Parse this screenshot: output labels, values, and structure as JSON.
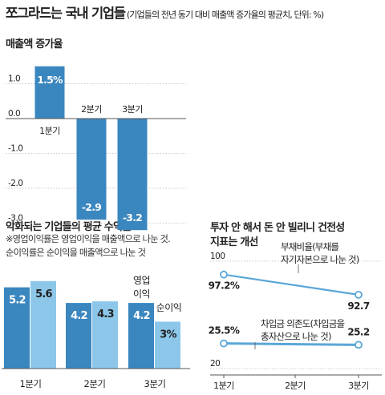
{
  "title": "쪼그라드는 국내 기업들",
  "subtitle": "(기업들의 전년 동기 대비 매출액 증가율의 평균치, 단위: %)",
  "colors": {
    "dark_bar": "#3a86bf",
    "light_bar": "#8cc7ea",
    "line": "#5aa6d8",
    "grid": "#bbbbbb",
    "zero_line": "#555555"
  },
  "chart_data": [
    {
      "type": "bar",
      "title": "매출액 증가율",
      "categories": [
        "1분기",
        "2분기",
        "3분기"
      ],
      "values": [
        1.5,
        -2.9,
        -3.2
      ],
      "value_labels": [
        "1.5%",
        "-2.9",
        "-3.2"
      ],
      "yticks": [
        "1.0",
        "0.0",
        "-1.0",
        "-2.0",
        "-3.0"
      ],
      "ylim": [
        -3.4,
        1.8
      ],
      "grid": true
    },
    {
      "type": "bar",
      "title": "악화되는 기업들의 평균 수익률",
      "note_lines": [
        "※영업이익률은 영업이익을 매출액으로 나눈 것.",
        "순이익률은 순이익을 매출액으로 나눈 것"
      ],
      "categories": [
        "1분기",
        "2분기",
        "3분기"
      ],
      "series": [
        {
          "name": "영업\n이익",
          "values": [
            5.2,
            4.2,
            4.2
          ],
          "labels": [
            "5.2",
            "4.2",
            "4.2"
          ]
        },
        {
          "name": "순이익",
          "values": [
            5.6,
            4.3,
            3.0
          ],
          "labels": [
            "5.6",
            "4.3",
            "3%"
          ]
        }
      ],
      "ylim": [
        0,
        5.6
      ]
    },
    {
      "type": "line",
      "title_lines": [
        "투자 안 해서 돈 안 빌리니 건전성",
        "지표는 개선"
      ],
      "categories": [
        "1분기",
        "2분기",
        "3분기"
      ],
      "series": [
        {
          "name": "부채비율(부채를\n자기자본으로 나눈 것)",
          "values": [
            97.2,
            92.7
          ],
          "x": [
            "1분기",
            "3분기"
          ],
          "labels": [
            "97.2%",
            "92.7"
          ],
          "ytick": "100",
          "ylim": [
            90,
            100
          ]
        },
        {
          "name": "차입금 의존도(차입금을\n총자산으로 나눈 것)",
          "values": [
            25.5,
            25.2
          ],
          "x": [
            "1분기",
            "3분기"
          ],
          "labels": [
            "25.5%",
            "25.2"
          ],
          "ytick": "20",
          "ylim": [
            20,
            27
          ]
        }
      ]
    }
  ]
}
